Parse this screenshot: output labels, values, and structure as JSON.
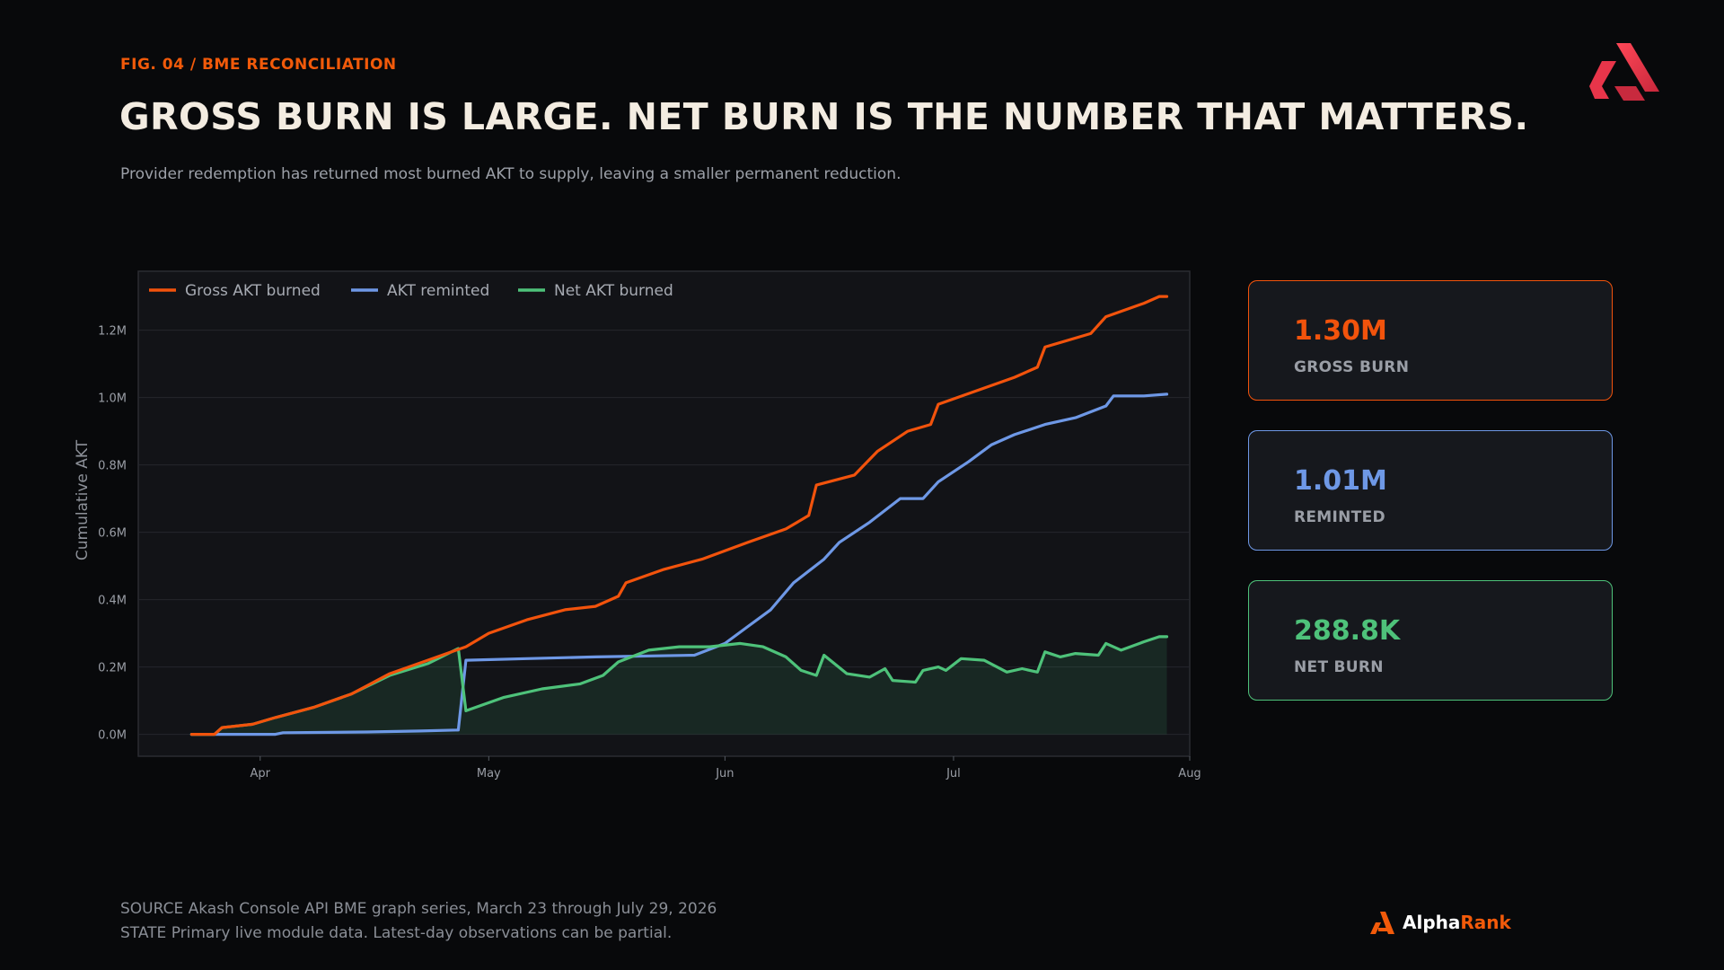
{
  "header": {
    "fig_label": "FIG. 04 / BME RECONCILIATION",
    "title": "GROSS BURN IS LARGE. NET BURN IS THE NUMBER THAT MATTERS.",
    "subtitle": "Provider redemption has returned most burned AKT to supply, leaving a smaller permanent reduction."
  },
  "colors": {
    "background": "#08090b",
    "plot_background": "#121317",
    "gross": "#f2530c",
    "reminted": "#6e98e6",
    "net": "#4ec27a",
    "accent": "#f25a0a",
    "logo_red": "#e8354a"
  },
  "cards": [
    {
      "value": "1.30M",
      "label": "GROSS BURN",
      "color": "#f2530c"
    },
    {
      "value": "1.01M",
      "label": "REMINTED",
      "color": "#6e98e6"
    },
    {
      "value": "288.8K",
      "label": "NET BURN",
      "color": "#4ec27a"
    }
  ],
  "footer": {
    "source": "SOURCE  Akash Console API BME graph series, March 23 through July 29, 2026",
    "state": "STATE  Primary live module data. Latest-day observations can be partial."
  },
  "brand": {
    "name_part1": "Alpha",
    "name_part2": "Rank",
    "logo_icon": "akash-logo-icon",
    "brand_icon": "alpharank-logo-icon"
  },
  "chart_data": {
    "type": "line",
    "title": "",
    "xlabel": "",
    "ylabel": "Cumulative AKT",
    "x_ticks": [
      "Apr",
      "May",
      "Jun",
      "Jul",
      "Aug"
    ],
    "y_ticks": [
      "0.0M",
      "0.2M",
      "0.4M",
      "0.6M",
      "0.8M",
      "1.0M",
      "1.2M"
    ],
    "ylim": [
      -0.065,
      1.375
    ],
    "xlim": [
      "2026-03-16",
      "2026-08-01"
    ],
    "grid": true,
    "legend_position": "top-left",
    "series": [
      {
        "name": "Gross AKT burned",
        "color": "#f2530c",
        "points": [
          [
            "2026-03-23",
            0.0
          ],
          [
            "2026-03-26",
            0.0
          ],
          [
            "2026-03-27",
            0.02
          ],
          [
            "2026-03-31",
            0.03
          ],
          [
            "2026-04-03",
            0.05
          ],
          [
            "2026-04-08",
            0.08
          ],
          [
            "2026-04-13",
            0.12
          ],
          [
            "2026-04-18",
            0.18
          ],
          [
            "2026-04-23",
            0.22
          ],
          [
            "2026-04-28",
            0.26
          ],
          [
            "2026-05-01",
            0.3
          ],
          [
            "2026-05-06",
            0.34
          ],
          [
            "2026-05-11",
            0.37
          ],
          [
            "2026-05-15",
            0.38
          ],
          [
            "2026-05-18",
            0.41
          ],
          [
            "2026-05-19",
            0.45
          ],
          [
            "2026-05-24",
            0.49
          ],
          [
            "2026-05-29",
            0.52
          ],
          [
            "2026-06-04",
            0.57
          ],
          [
            "2026-06-09",
            0.61
          ],
          [
            "2026-06-12",
            0.65
          ],
          [
            "2026-06-13",
            0.74
          ],
          [
            "2026-06-18",
            0.77
          ],
          [
            "2026-06-21",
            0.84
          ],
          [
            "2026-06-25",
            0.9
          ],
          [
            "2026-06-28",
            0.92
          ],
          [
            "2026-06-29",
            0.98
          ],
          [
            "2026-07-04",
            1.02
          ],
          [
            "2026-07-09",
            1.06
          ],
          [
            "2026-07-12",
            1.09
          ],
          [
            "2026-07-13",
            1.15
          ],
          [
            "2026-07-19",
            1.19
          ],
          [
            "2026-07-21",
            1.24
          ],
          [
            "2026-07-26",
            1.28
          ],
          [
            "2026-07-28",
            1.3
          ],
          [
            "2026-07-29",
            1.3
          ]
        ]
      },
      {
        "name": "AKT reminted",
        "color": "#6e98e6",
        "points": [
          [
            "2026-03-23",
            0.0
          ],
          [
            "2026-04-03",
            0.0
          ],
          [
            "2026-04-04",
            0.005
          ],
          [
            "2026-04-15",
            0.007
          ],
          [
            "2026-04-22",
            0.01
          ],
          [
            "2026-04-27",
            0.013
          ],
          [
            "2026-04-28",
            0.22
          ],
          [
            "2026-05-06",
            0.225
          ],
          [
            "2026-05-15",
            0.23
          ],
          [
            "2026-05-28",
            0.235
          ],
          [
            "2026-06-01",
            0.27
          ],
          [
            "2026-06-04",
            0.32
          ],
          [
            "2026-06-07",
            0.37
          ],
          [
            "2026-06-10",
            0.45
          ],
          [
            "2026-06-14",
            0.52
          ],
          [
            "2026-06-16",
            0.57
          ],
          [
            "2026-06-20",
            0.63
          ],
          [
            "2026-06-24",
            0.7
          ],
          [
            "2026-06-27",
            0.7
          ],
          [
            "2026-06-29",
            0.75
          ],
          [
            "2026-07-03",
            0.81
          ],
          [
            "2026-07-06",
            0.86
          ],
          [
            "2026-07-09",
            0.89
          ],
          [
            "2026-07-13",
            0.92
          ],
          [
            "2026-07-17",
            0.94
          ],
          [
            "2026-07-21",
            0.975
          ],
          [
            "2026-07-22",
            1.005
          ],
          [
            "2026-07-26",
            1.005
          ],
          [
            "2026-07-29",
            1.01
          ]
        ]
      },
      {
        "name": "Net AKT burned",
        "color": "#4ec27a",
        "points": [
          [
            "2026-03-23",
            0.0
          ],
          [
            "2026-03-26",
            0.0
          ],
          [
            "2026-03-27",
            0.02
          ],
          [
            "2026-03-31",
            0.03
          ],
          [
            "2026-04-03",
            0.05
          ],
          [
            "2026-04-08",
            0.08
          ],
          [
            "2026-04-13",
            0.12
          ],
          [
            "2026-04-18",
            0.175
          ],
          [
            "2026-04-23",
            0.21
          ],
          [
            "2026-04-27",
            0.255
          ],
          [
            "2026-04-28",
            0.07
          ],
          [
            "2026-05-03",
            0.11
          ],
          [
            "2026-05-08",
            0.135
          ],
          [
            "2026-05-13",
            0.15
          ],
          [
            "2026-05-16",
            0.175
          ],
          [
            "2026-05-18",
            0.215
          ],
          [
            "2026-05-22",
            0.25
          ],
          [
            "2026-05-26",
            0.26
          ],
          [
            "2026-05-30",
            0.26
          ],
          [
            "2026-06-03",
            0.27
          ],
          [
            "2026-06-06",
            0.26
          ],
          [
            "2026-06-09",
            0.23
          ],
          [
            "2026-06-11",
            0.19
          ],
          [
            "2026-06-13",
            0.175
          ],
          [
            "2026-06-14",
            0.235
          ],
          [
            "2026-06-17",
            0.18
          ],
          [
            "2026-06-20",
            0.17
          ],
          [
            "2026-06-22",
            0.195
          ],
          [
            "2026-06-23",
            0.16
          ],
          [
            "2026-06-26",
            0.155
          ],
          [
            "2026-06-27",
            0.19
          ],
          [
            "2026-06-29",
            0.2
          ],
          [
            "2026-06-30",
            0.19
          ],
          [
            "2026-07-02",
            0.225
          ],
          [
            "2026-07-05",
            0.22
          ],
          [
            "2026-07-08",
            0.185
          ],
          [
            "2026-07-10",
            0.195
          ],
          [
            "2026-07-12",
            0.185
          ],
          [
            "2026-07-13",
            0.245
          ],
          [
            "2026-07-15",
            0.23
          ],
          [
            "2026-07-17",
            0.24
          ],
          [
            "2026-07-20",
            0.235
          ],
          [
            "2026-07-21",
            0.27
          ],
          [
            "2026-07-23",
            0.25
          ],
          [
            "2026-07-26",
            0.275
          ],
          [
            "2026-07-28",
            0.29
          ],
          [
            "2026-07-29",
            0.29
          ]
        ]
      }
    ]
  }
}
